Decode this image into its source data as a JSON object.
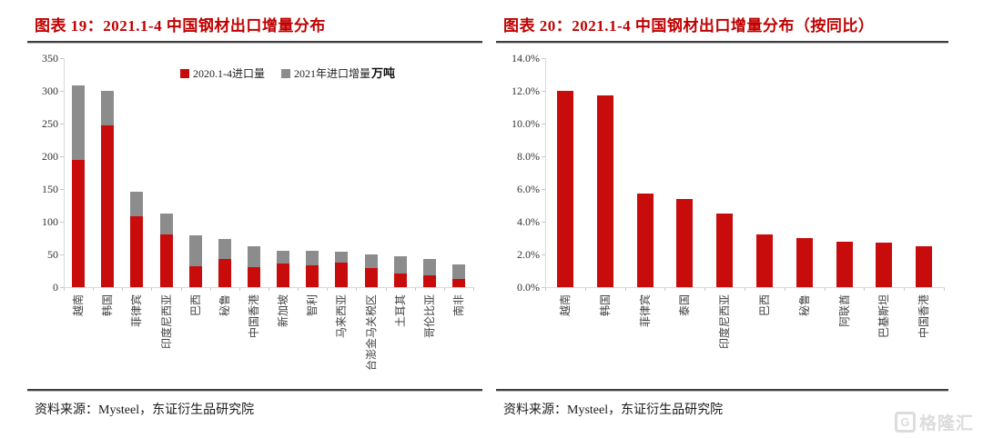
{
  "page": {
    "background": "#ffffff"
  },
  "accent_red": "#c00000",
  "left": {
    "title": "图表 19：2021.1-4 中国钢材出口增量分布",
    "source": "资料来源：Mysteel，东证衍生品研究院"
  },
  "right": {
    "title": "图表 20：2021.1-4 中国钢材出口增量分布（按同比）",
    "source": "资料来源：Mysteel，东证衍生品研究院"
  },
  "watermark": {
    "logo_letter": "G",
    "text": "格隆汇",
    "color": "#dcdcdc"
  },
  "chart_data": [
    {
      "type": "bar",
      "subtype": "stacked",
      "title": "图表 19：2021.1-4 中国钢材出口增量分布",
      "unit_label": "万吨",
      "categories": [
        "越南",
        "韩国",
        "菲律宾",
        "印度尼西亚",
        "巴西",
        "秘鲁",
        "中国香港",
        "新加坡",
        "智利",
        "马来西亚",
        "台澎金马关税区",
        "土耳其",
        "哥伦比亚",
        "南非"
      ],
      "series": [
        {
          "name": "2020.1-4进口量",
          "color": "#c80b0b",
          "values": [
            195,
            247,
            108,
            81,
            32,
            43,
            30,
            36,
            34,
            38,
            29,
            21,
            18,
            12
          ]
        },
        {
          "name": "2021年进口增量",
          "color": "#8c8c8c",
          "values": [
            113,
            53,
            38,
            32,
            47,
            31,
            32,
            20,
            21,
            16,
            21,
            26,
            25,
            23
          ]
        }
      ],
      "stacked_totals": [
        308,
        300,
        146,
        113,
        79,
        74,
        62,
        56,
        55,
        54,
        50,
        47,
        43,
        35
      ],
      "xlabel": "",
      "ylabel": "",
      "ylim": [
        0,
        350
      ],
      "ytick_step": 50,
      "grid": false,
      "legend_position": "top"
    },
    {
      "type": "bar",
      "title": "图表 20：2021.1-4 中国钢材出口增量分布（按同比）",
      "categories": [
        "越南",
        "韩国",
        "菲律宾",
        "泰国",
        "印度尼西亚",
        "巴西",
        "秘鲁",
        "阿联酋",
        "巴基斯坦",
        "中国香港"
      ],
      "values": [
        12.0,
        11.7,
        5.7,
        5.4,
        4.5,
        3.2,
        3.0,
        2.8,
        2.7,
        2.5
      ],
      "color": "#c80b0b",
      "xlabel": "",
      "ylabel": "",
      "ylim": [
        0,
        14
      ],
      "ytick_step": 2,
      "ytick_format": "percent1",
      "grid": false,
      "legend_position": "none"
    }
  ]
}
